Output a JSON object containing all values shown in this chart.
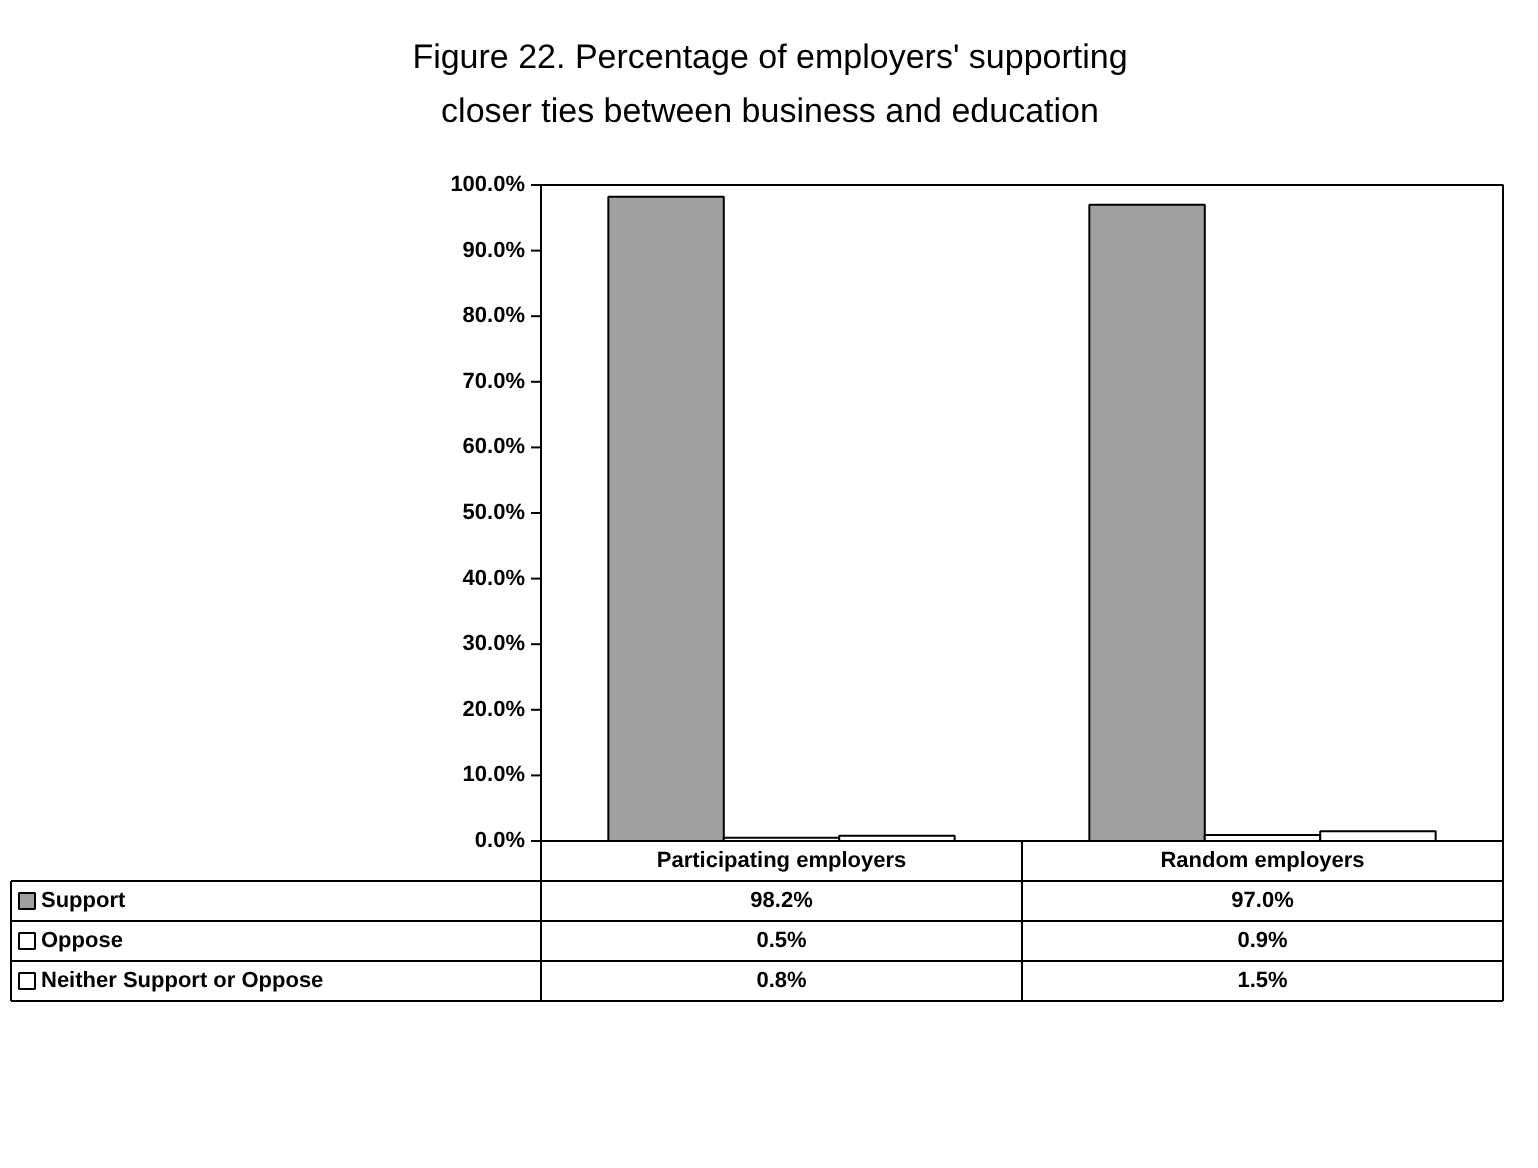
{
  "chart_data": {
    "type": "bar",
    "title": "Figure 22. Percentage of employers' supporting closer ties between business and education",
    "categories": [
      "Participating employers",
      "Random employers"
    ],
    "series": [
      {
        "name": "Support",
        "color": "#a0a0a0",
        "values": [
          98.2,
          97.0
        ],
        "value_labels": [
          "98.2%",
          "97.0%"
        ]
      },
      {
        "name": "Oppose",
        "color": "#ffffff",
        "values": [
          0.5,
          0.9
        ],
        "value_labels": [
          "0.5%",
          "0.9%"
        ]
      },
      {
        "name": "Neither Support or Oppose",
        "color": "#ffffff",
        "values": [
          0.8,
          1.5
        ],
        "value_labels": [
          "0.8%",
          "1.5%"
        ]
      }
    ],
    "ylim": [
      0,
      100
    ],
    "yticks": [
      {
        "value": 0,
        "label": "0.0%"
      },
      {
        "value": 10,
        "label": "10.0%"
      },
      {
        "value": 20,
        "label": "20.0%"
      },
      {
        "value": 30,
        "label": "30.0%"
      },
      {
        "value": 40,
        "label": "40.0%"
      },
      {
        "value": 50,
        "label": "50.0%"
      },
      {
        "value": 60,
        "label": "60.0%"
      },
      {
        "value": 70,
        "label": "70.0%"
      },
      {
        "value": 80,
        "label": "80.0%"
      },
      {
        "value": 90,
        "label": "90.0%"
      },
      {
        "value": 100,
        "label": "100.0%"
      }
    ],
    "grid": false,
    "legend": "bottom left"
  }
}
